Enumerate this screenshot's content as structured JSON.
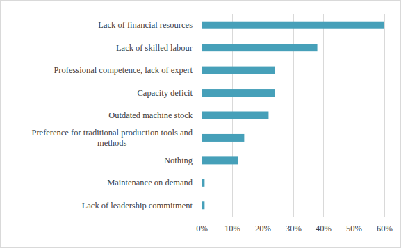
{
  "chart_data": {
    "type": "bar",
    "orientation": "horizontal",
    "categories": [
      "Lack of financial resources",
      "Lack of skilled labour",
      "Professional competence, lack of expert",
      "Capacity deficit",
      "Outdated machine stock",
      "Preference for traditional production tools and methods",
      "Nothing",
      "Maintenance on demand",
      "Lack of leadership commitment"
    ],
    "values": [
      60,
      38,
      24,
      24,
      22,
      14,
      12,
      1,
      1
    ],
    "color": "#46a0b9",
    "xlim": [
      0,
      60
    ],
    "xticks": [
      {
        "value": 0,
        "label": "0%"
      },
      {
        "value": 10,
        "label": "10%"
      },
      {
        "value": 20,
        "label": "20%"
      },
      {
        "value": 30,
        "label": "30%"
      },
      {
        "value": 40,
        "label": "40%"
      },
      {
        "value": 50,
        "label": "50%"
      },
      {
        "value": 60,
        "label": "60%"
      }
    ],
    "grid": true
  }
}
